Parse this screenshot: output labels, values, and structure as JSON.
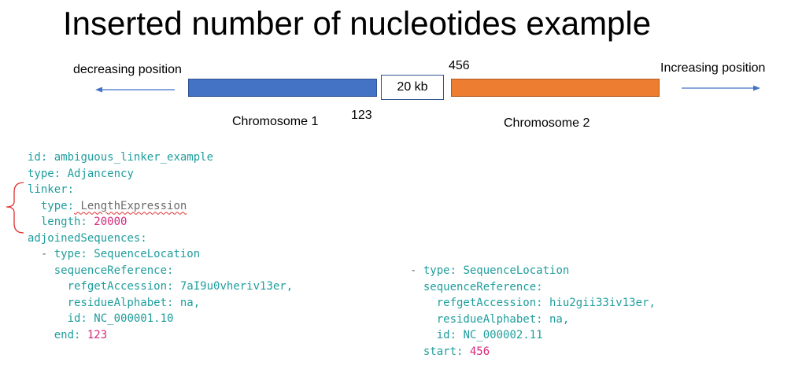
{
  "title": "Inserted number of nucleotides example",
  "diagram": {
    "left_direction": "decreasing position",
    "right_direction": "Increasing position",
    "gap_label": "20 kb",
    "pos_left": "123",
    "pos_right": "456",
    "chrom1_label": "Chromosome 1",
    "chrom2_label": "Chromosome 2",
    "colors": {
      "chrom1": "#4472c4",
      "chrom2": "#ed7d31",
      "arrow": "#4472c4",
      "brace": "#e03030"
    }
  },
  "code_left": {
    "id_key": "id:",
    "id_val": " ambiguous_linker_example",
    "type_key": "type:",
    "type_val": " Adjancency",
    "linker_key": "linker:",
    "ltype_key": "type:",
    "ltype_val": " LengthExpression",
    "length_key": "length:",
    "length_val": " 20000",
    "adj_key": "adjoinedSequences:",
    "s1_dash": "- ",
    "s1_type_key": "type:",
    "s1_type_val": " SequenceLocation",
    "s1_ref_key": "sequenceReference:",
    "s1_acc_key": "refgetAccession:",
    "s1_acc_val": " 7aI9u0vheriv13er,",
    "s1_alpha_key": "residueAlphabet:",
    "s1_alpha_val": " na,",
    "s1_id_key": "id:",
    "s1_id_val": " NC_000001.10",
    "s1_end_key": "end:",
    "s1_end_val": " 123"
  },
  "code_right": {
    "s2_dash": "- ",
    "s2_type_key": "type:",
    "s2_type_val": " SequenceLocation",
    "s2_ref_key": "sequenceReference:",
    "s2_acc_key": "refgetAccession:",
    "s2_acc_val": " hiu2gii33iv13er,",
    "s2_alpha_key": "residueAlphabet:",
    "s2_alpha_val": " na,",
    "s2_id_key": "id:",
    "s2_id_val": " NC_000002.11",
    "s2_start_key": "start:",
    "s2_start_val": " 456"
  }
}
